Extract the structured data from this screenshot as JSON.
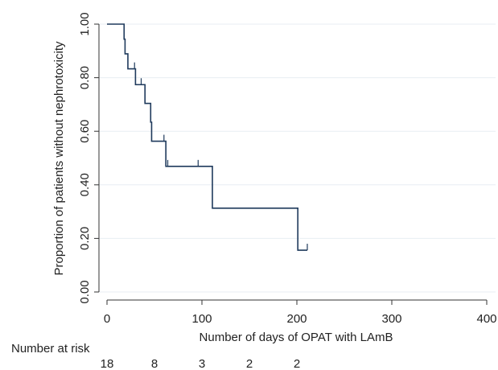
{
  "chart_data": {
    "type": "line",
    "subtype": "kaplan-meier",
    "title": "",
    "xlabel": "Number of days of OPAT with LAmB",
    "ylabel": "Proportion of patients without nephrotoxicity",
    "xlim": [
      0,
      400
    ],
    "ylim": [
      0,
      1
    ],
    "x_ticks": [
      0,
      100,
      200,
      300,
      400
    ],
    "x_tick_labels": [
      "0",
      "100",
      "200",
      "300",
      "400"
    ],
    "y_ticks": [
      0,
      0.2,
      0.4,
      0.6,
      0.8,
      1.0
    ],
    "y_tick_labels": [
      "0.00",
      "0.20",
      "0.40",
      "0.60",
      "0.80",
      "1.00"
    ],
    "grid": "horizontal",
    "line_color": "#1f3a5c",
    "series": [
      {
        "steps": [
          {
            "x": 0,
            "y": 1.0
          },
          {
            "x": 18,
            "y": 0.944
          },
          {
            "x": 19,
            "y": 0.889
          },
          {
            "x": 22,
            "y": 0.833
          },
          {
            "x": 30,
            "y": 0.774
          },
          {
            "x": 40,
            "y": 0.704
          },
          {
            "x": 46,
            "y": 0.634
          },
          {
            "x": 47,
            "y": 0.563
          },
          {
            "x": 62,
            "y": 0.469
          },
          {
            "x": 111,
            "y": 0.313
          },
          {
            "x": 201,
            "y": 0.156
          }
        ],
        "end_x": 211,
        "censored": [
          {
            "x": 29,
            "y": 0.833
          },
          {
            "x": 36,
            "y": 0.774
          },
          {
            "x": 60,
            "y": 0.563
          },
          {
            "x": 64,
            "y": 0.469
          },
          {
            "x": 96,
            "y": 0.469
          },
          {
            "x": 211,
            "y": 0.156
          }
        ]
      }
    ],
    "risk_table": {
      "label": "Number at risk",
      "x": [
        0,
        50,
        100,
        150,
        200
      ],
      "values": [
        "18",
        "8",
        "3",
        "2",
        "2"
      ]
    }
  }
}
